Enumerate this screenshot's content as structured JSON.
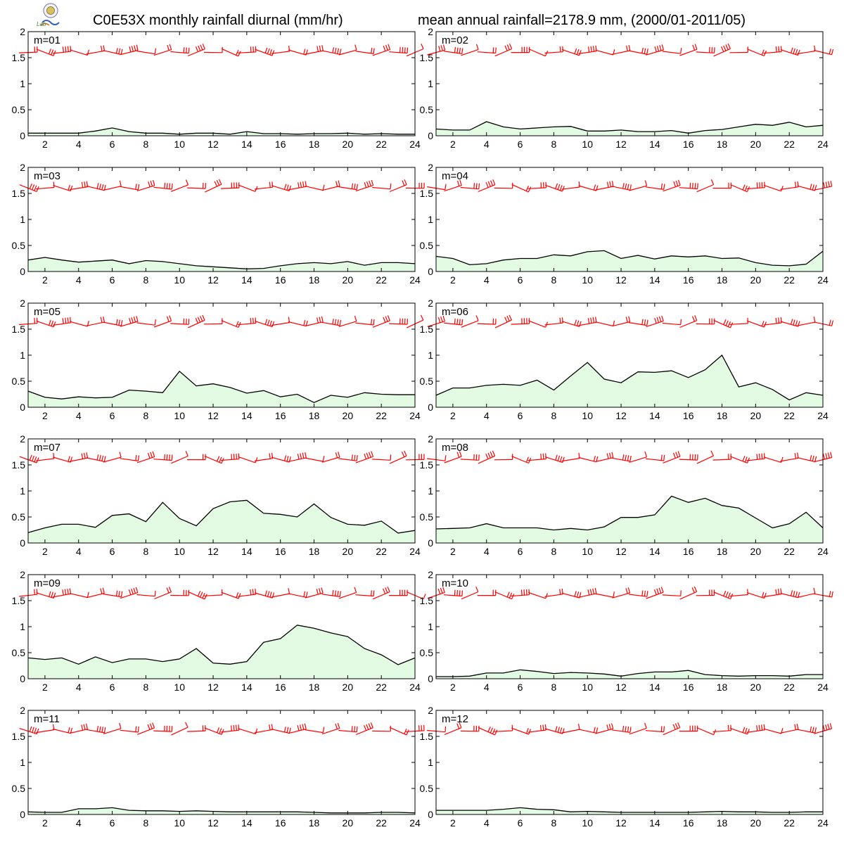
{
  "header": {
    "title_left": "C0E53X monthly rainfall diurnal (mm/hr)",
    "title_right": "mean annual rainfall=2178.9 mm, (2000/01-2011/05)",
    "logo_text": "Lab"
  },
  "colors": {
    "rain_line": "#000000",
    "rain_fill": "#e3fbe3",
    "wind_barb": "#ff0000",
    "axis": "#000000",
    "logo_accent": "#3a8a3a"
  },
  "chart_data": [
    {
      "type": "area",
      "label": "m=01",
      "x": [
        1,
        2,
        3,
        4,
        5,
        6,
        7,
        8,
        9,
        10,
        11,
        12,
        13,
        14,
        15,
        16,
        17,
        18,
        19,
        20,
        21,
        22,
        23,
        24
      ],
      "values": [
        0.05,
        0.05,
        0.05,
        0.05,
        0.09,
        0.15,
        0.08,
        0.05,
        0.05,
        0.03,
        0.05,
        0.05,
        0.03,
        0.08,
        0.04,
        0.04,
        0.03,
        0.04,
        0.04,
        0.05,
        0.03,
        0.04,
        0.03,
        0.03
      ],
      "xticks": [
        2,
        4,
        6,
        8,
        10,
        12,
        14,
        16,
        18,
        20,
        22,
        24
      ],
      "yticks": [
        0,
        0.5,
        1,
        1.5,
        2
      ],
      "xlim": [
        1,
        24
      ],
      "ylim": [
        0,
        2
      ]
    },
    {
      "type": "area",
      "label": "m=02",
      "x": [
        1,
        2,
        3,
        4,
        5,
        6,
        7,
        8,
        9,
        10,
        11,
        12,
        13,
        14,
        15,
        16,
        17,
        18,
        19,
        20,
        21,
        22,
        23,
        24
      ],
      "values": [
        0.13,
        0.11,
        0.11,
        0.27,
        0.17,
        0.13,
        0.15,
        0.17,
        0.18,
        0.09,
        0.09,
        0.11,
        0.08,
        0.08,
        0.1,
        0.05,
        0.1,
        0.12,
        0.17,
        0.22,
        0.2,
        0.26,
        0.17,
        0.2
      ],
      "xticks": [
        2,
        4,
        6,
        8,
        10,
        12,
        14,
        16,
        18,
        20,
        22,
        24
      ],
      "yticks": [
        0,
        0.5,
        1,
        1.5,
        2
      ],
      "xlim": [
        1,
        24
      ],
      "ylim": [
        0,
        2
      ]
    },
    {
      "type": "area",
      "label": "m=03",
      "x": [
        1,
        2,
        3,
        4,
        5,
        6,
        7,
        8,
        9,
        10,
        11,
        12,
        13,
        14,
        15,
        16,
        17,
        18,
        19,
        20,
        21,
        22,
        23,
        24
      ],
      "values": [
        0.22,
        0.27,
        0.22,
        0.18,
        0.2,
        0.22,
        0.15,
        0.21,
        0.19,
        0.15,
        0.11,
        0.09,
        0.07,
        0.05,
        0.06,
        0.11,
        0.15,
        0.17,
        0.15,
        0.19,
        0.12,
        0.17,
        0.17,
        0.15
      ],
      "xticks": [
        2,
        4,
        6,
        8,
        10,
        12,
        14,
        16,
        18,
        20,
        22,
        24
      ],
      "yticks": [
        0,
        0.5,
        1,
        1.5,
        2
      ],
      "xlim": [
        1,
        24
      ],
      "ylim": [
        0,
        2
      ]
    },
    {
      "type": "area",
      "label": "m=04",
      "x": [
        1,
        2,
        3,
        4,
        5,
        6,
        7,
        8,
        9,
        10,
        11,
        12,
        13,
        14,
        15,
        16,
        17,
        18,
        19,
        20,
        21,
        22,
        23,
        24
      ],
      "values": [
        0.29,
        0.25,
        0.13,
        0.15,
        0.22,
        0.25,
        0.25,
        0.32,
        0.3,
        0.38,
        0.4,
        0.25,
        0.31,
        0.24,
        0.3,
        0.28,
        0.3,
        0.25,
        0.26,
        0.17,
        0.12,
        0.11,
        0.14,
        0.39
      ],
      "xticks": [
        2,
        4,
        6,
        8,
        10,
        12,
        14,
        16,
        18,
        20,
        22,
        24
      ],
      "yticks": [
        0,
        0.5,
        1,
        1.5,
        2
      ],
      "xlim": [
        1,
        24
      ],
      "ylim": [
        0,
        2
      ]
    },
    {
      "type": "area",
      "label": "m=05",
      "x": [
        1,
        2,
        3,
        4,
        5,
        6,
        7,
        8,
        9,
        10,
        11,
        12,
        13,
        14,
        15,
        16,
        17,
        18,
        19,
        20,
        21,
        22,
        23,
        24
      ],
      "values": [
        0.31,
        0.19,
        0.16,
        0.2,
        0.18,
        0.19,
        0.33,
        0.31,
        0.28,
        0.69,
        0.41,
        0.45,
        0.38,
        0.27,
        0.32,
        0.2,
        0.25,
        0.09,
        0.23,
        0.19,
        0.28,
        0.25,
        0.24,
        0.24
      ],
      "xticks": [
        2,
        4,
        6,
        8,
        10,
        12,
        14,
        16,
        18,
        20,
        22,
        24
      ],
      "yticks": [
        0,
        0.5,
        1,
        1.5,
        2
      ],
      "xlim": [
        1,
        24
      ],
      "ylim": [
        0,
        2
      ]
    },
    {
      "type": "area",
      "label": "m=06",
      "x": [
        1,
        2,
        3,
        4,
        5,
        6,
        7,
        8,
        9,
        10,
        11,
        12,
        13,
        14,
        15,
        16,
        17,
        18,
        19,
        20,
        21,
        22,
        23,
        24
      ],
      "values": [
        0.23,
        0.37,
        0.37,
        0.42,
        0.44,
        0.42,
        0.52,
        0.33,
        0.6,
        0.86,
        0.54,
        0.47,
        0.68,
        0.67,
        0.7,
        0.57,
        0.72,
        1.0,
        0.39,
        0.47,
        0.34,
        0.14,
        0.28,
        0.23
      ],
      "xticks": [
        2,
        4,
        6,
        8,
        10,
        12,
        14,
        16,
        18,
        20,
        22,
        24
      ],
      "yticks": [
        0,
        0.5,
        1,
        1.5,
        2
      ],
      "xlim": [
        1,
        24
      ],
      "ylim": [
        0,
        2
      ]
    },
    {
      "type": "area",
      "label": "m=07",
      "x": [
        1,
        2,
        3,
        4,
        5,
        6,
        7,
        8,
        9,
        10,
        11,
        12,
        13,
        14,
        15,
        16,
        17,
        18,
        19,
        20,
        21,
        22,
        23,
        24
      ],
      "values": [
        0.2,
        0.29,
        0.36,
        0.36,
        0.3,
        0.53,
        0.56,
        0.41,
        0.78,
        0.47,
        0.33,
        0.66,
        0.79,
        0.82,
        0.57,
        0.55,
        0.5,
        0.75,
        0.49,
        0.36,
        0.34,
        0.42,
        0.19,
        0.24
      ],
      "xticks": [
        2,
        4,
        6,
        8,
        10,
        12,
        14,
        16,
        18,
        20,
        22,
        24
      ],
      "yticks": [
        0,
        0.5,
        1,
        1.5,
        2
      ],
      "xlim": [
        1,
        24
      ],
      "ylim": [
        0,
        2
      ]
    },
    {
      "type": "area",
      "label": "m=08",
      "x": [
        1,
        2,
        3,
        4,
        5,
        6,
        7,
        8,
        9,
        10,
        11,
        12,
        13,
        14,
        15,
        16,
        17,
        18,
        19,
        20,
        21,
        22,
        23,
        24
      ],
      "values": [
        0.27,
        0.28,
        0.29,
        0.37,
        0.29,
        0.29,
        0.29,
        0.25,
        0.28,
        0.25,
        0.31,
        0.49,
        0.49,
        0.54,
        0.9,
        0.78,
        0.86,
        0.72,
        0.67,
        0.48,
        0.29,
        0.37,
        0.59,
        0.29
      ],
      "xticks": [
        2,
        4,
        6,
        8,
        10,
        12,
        14,
        16,
        18,
        20,
        22,
        24
      ],
      "yticks": [
        0,
        0.5,
        1,
        1.5,
        2
      ],
      "xlim": [
        1,
        24
      ],
      "ylim": [
        0,
        2
      ]
    },
    {
      "type": "area",
      "label": "m=09",
      "x": [
        1,
        2,
        3,
        4,
        5,
        6,
        7,
        8,
        9,
        10,
        11,
        12,
        13,
        14,
        15,
        16,
        17,
        18,
        19,
        20,
        21,
        22,
        23,
        24
      ],
      "values": [
        0.4,
        0.37,
        0.4,
        0.28,
        0.42,
        0.31,
        0.38,
        0.38,
        0.33,
        0.38,
        0.58,
        0.3,
        0.28,
        0.33,
        0.7,
        0.77,
        1.03,
        0.97,
        0.88,
        0.81,
        0.58,
        0.46,
        0.27,
        0.4
      ],
      "xticks": [
        2,
        4,
        6,
        8,
        10,
        12,
        14,
        16,
        18,
        20,
        22,
        24
      ],
      "yticks": [
        0,
        0.5,
        1,
        1.5,
        2
      ],
      "xlim": [
        1,
        24
      ],
      "ylim": [
        0,
        2
      ]
    },
    {
      "type": "area",
      "label": "m=10",
      "x": [
        1,
        2,
        3,
        4,
        5,
        6,
        7,
        8,
        9,
        10,
        11,
        12,
        13,
        14,
        15,
        16,
        17,
        18,
        19,
        20,
        21,
        22,
        23,
        24
      ],
      "values": [
        0.04,
        0.04,
        0.05,
        0.11,
        0.11,
        0.17,
        0.14,
        0.1,
        0.12,
        0.11,
        0.09,
        0.05,
        0.1,
        0.13,
        0.13,
        0.16,
        0.08,
        0.06,
        0.05,
        0.06,
        0.06,
        0.05,
        0.08,
        0.08
      ],
      "xticks": [
        2,
        4,
        6,
        8,
        10,
        12,
        14,
        16,
        18,
        20,
        22,
        24
      ],
      "yticks": [
        0,
        0.5,
        1,
        1.5,
        2
      ],
      "xlim": [
        1,
        24
      ],
      "ylim": [
        0,
        2
      ]
    },
    {
      "type": "area",
      "label": "m=11",
      "x": [
        1,
        2,
        3,
        4,
        5,
        6,
        7,
        8,
        9,
        10,
        11,
        12,
        13,
        14,
        15,
        16,
        17,
        18,
        19,
        20,
        21,
        22,
        23,
        24
      ],
      "values": [
        0.05,
        0.04,
        0.04,
        0.11,
        0.11,
        0.13,
        0.08,
        0.07,
        0.07,
        0.06,
        0.07,
        0.06,
        0.05,
        0.05,
        0.05,
        0.05,
        0.05,
        0.04,
        0.03,
        0.03,
        0.03,
        0.04,
        0.04,
        0.03
      ],
      "xticks": [
        2,
        4,
        6,
        8,
        10,
        12,
        14,
        16,
        18,
        20,
        22,
        24
      ],
      "yticks": [
        0,
        0.5,
        1,
        1.5,
        2
      ],
      "xlim": [
        1,
        24
      ],
      "ylim": [
        0,
        2
      ]
    },
    {
      "type": "area",
      "label": "m=12",
      "x": [
        1,
        2,
        3,
        4,
        5,
        6,
        7,
        8,
        9,
        10,
        11,
        12,
        13,
        14,
        15,
        16,
        17,
        18,
        19,
        20,
        21,
        22,
        23,
        24
      ],
      "values": [
        0.08,
        0.08,
        0.08,
        0.08,
        0.1,
        0.13,
        0.1,
        0.09,
        0.05,
        0.06,
        0.05,
        0.04,
        0.04,
        0.04,
        0.04,
        0.04,
        0.05,
        0.06,
        0.05,
        0.05,
        0.04,
        0.04,
        0.05,
        0.05
      ],
      "xticks": [
        2,
        4,
        6,
        8,
        10,
        12,
        14,
        16,
        18,
        20,
        22,
        24
      ],
      "yticks": [
        0,
        0.5,
        1,
        1.5,
        2
      ],
      "xlim": [
        1,
        24
      ],
      "ylim": [
        0,
        2
      ]
    }
  ]
}
